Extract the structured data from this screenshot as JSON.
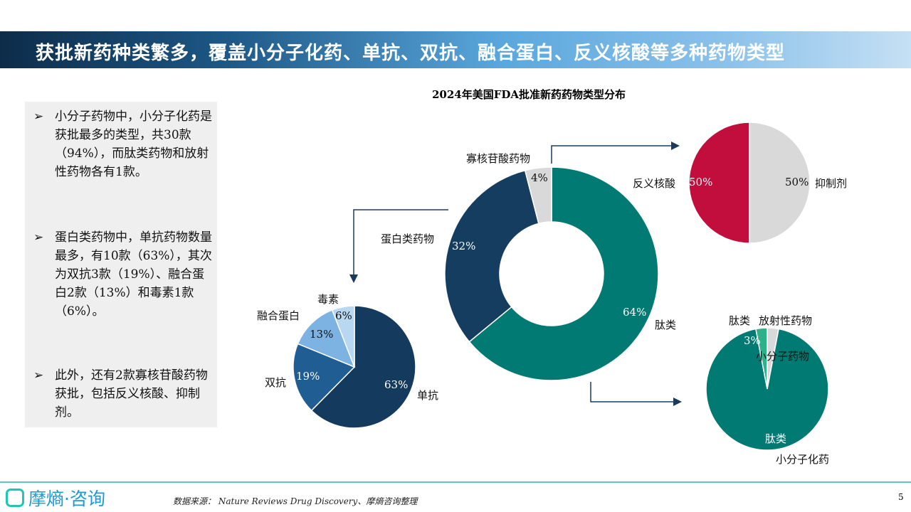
{
  "header": {
    "title": "获批新药种类繁多，覆盖小分子化药、单抗、双抗、融合蛋白、反义核酸等多种药物类型"
  },
  "sidebar": {
    "bullets": [
      "小分子药物中，小分子化药是获批最多的类型，共30款（94%），而肽类药物和放射性药物各有1款。",
      "蛋白类药物中，单抗药物数量最多，有10款（63%），其次为双抗3款（19%）、融合蛋白2款（13%）和毒素1款（6%）。",
      "此外，还有2款寡核苷酸药物获批，包括反义核酸、抑制剂。"
    ]
  },
  "chart_data": [
    {
      "type": "pie",
      "variant": "donut",
      "title": "2024年美国FDA批准新药药物类型分布",
      "slices": [
        {
          "label": "小分子药物",
          "value": 64,
          "value_label": "64%",
          "color": "#007a72"
        },
        {
          "label": "蛋白类药物",
          "value": 32,
          "value_label": "32%",
          "color": "#153d60"
        },
        {
          "label": "寡核苷酸药物",
          "value": 4,
          "value_label": "4%",
          "color": "#d9d9d9"
        }
      ]
    },
    {
      "type": "pie",
      "slices": [
        {
          "label": "单抗",
          "value": 63,
          "value_label": "63%",
          "color": "#143a5e"
        },
        {
          "label": "双抗",
          "value": 19,
          "value_label": "19%",
          "color": "#1f5d92"
        },
        {
          "label": "融合蛋白",
          "value": 13,
          "value_label": "13%",
          "color": "#7db3e2"
        },
        {
          "label": "毒素",
          "value": 6,
          "value_label": "6%",
          "color": "#b9d7f1"
        }
      ]
    },
    {
      "type": "pie",
      "slices": [
        {
          "label": "抑制剂",
          "value": 50,
          "value_label": "50%",
          "color": "#d9d9d9"
        },
        {
          "label": "反义核酸",
          "value": 50,
          "value_label": "50%",
          "color": "#c20e3c"
        }
      ]
    },
    {
      "type": "pie",
      "slices": [
        {
          "label": "放射性药物",
          "value": 3,
          "value_label": "3%",
          "color": "#d9d9d9"
        },
        {
          "label": "小分子化药",
          "value": 94,
          "value_label": "94%",
          "color": "#007a72"
        },
        {
          "label": "肽类",
          "value": 3,
          "value_label": "3%",
          "color": "#2fb08a"
        }
      ]
    }
  ],
  "footer": {
    "logo": "摩熵·咨询",
    "source": "数据来源： Nature Reviews Drug Discovery、摩熵咨询整理",
    "page": "5"
  }
}
